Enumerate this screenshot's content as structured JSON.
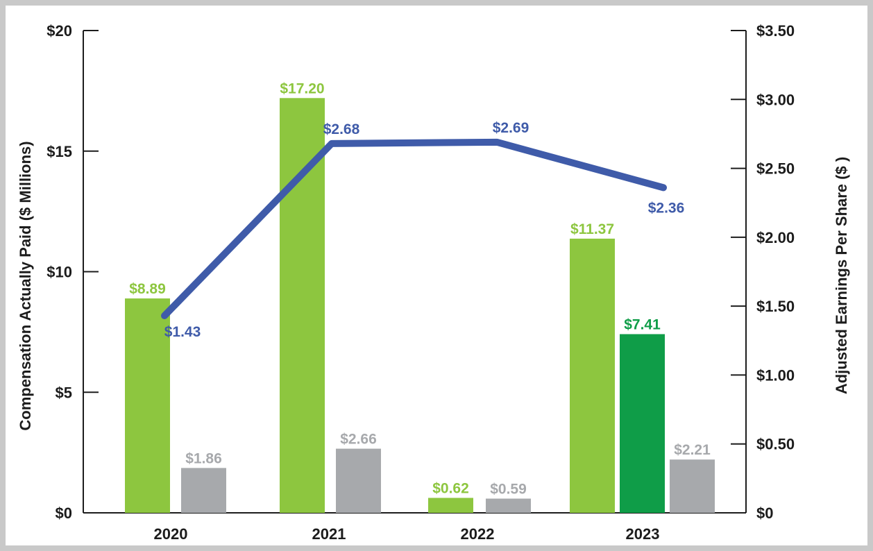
{
  "chart_data": {
    "type": "bar",
    "categories": [
      "2020",
      "2021",
      "2022",
      "2023"
    ],
    "ylabel": "Compensation Actually Paid ($ Millions)",
    "y2label": "Adjusted Earnings Per Share ($ )",
    "ylim": [
      0,
      20
    ],
    "y2lim": [
      0,
      3.5
    ],
    "yticks": [
      {
        "value": 0,
        "label": "$0"
      },
      {
        "value": 5,
        "label": "$5"
      },
      {
        "value": 10,
        "label": "$10"
      },
      {
        "value": 15,
        "label": "$15"
      },
      {
        "value": 20,
        "label": "$20"
      }
    ],
    "y2ticks": [
      {
        "value": 0,
        "label": "$0"
      },
      {
        "value": 0.5,
        "label": "$0.50"
      },
      {
        "value": 1.0,
        "label": "$1.00"
      },
      {
        "value": 1.5,
        "label": "$1.50"
      },
      {
        "value": 2.0,
        "label": "$2.00"
      },
      {
        "value": 2.5,
        "label": "$2.50"
      },
      {
        "value": 3.0,
        "label": "$3.00"
      },
      {
        "value": 3.5,
        "label": "$3.50"
      }
    ],
    "bars": [
      {
        "category": "2020",
        "series": "light-green",
        "value": 8.89,
        "label": "$8.89"
      },
      {
        "category": "2020",
        "series": "gray",
        "value": 1.86,
        "label": "$1.86"
      },
      {
        "category": "2021",
        "series": "light-green",
        "value": 17.2,
        "label": "$17.20"
      },
      {
        "category": "2021",
        "series": "gray",
        "value": 2.66,
        "label": "$2.66"
      },
      {
        "category": "2022",
        "series": "light-green",
        "value": 0.62,
        "label": "$0.62"
      },
      {
        "category": "2022",
        "series": "gray",
        "value": 0.59,
        "label": "$0.59"
      },
      {
        "category": "2023",
        "series": "light-green",
        "value": 11.37,
        "label": "$11.37"
      },
      {
        "category": "2023",
        "series": "dark-green",
        "value": 7.41,
        "label": "$7.41"
      },
      {
        "category": "2023",
        "series": "gray",
        "value": 2.21,
        "label": "$2.21"
      }
    ],
    "line": {
      "axis": "right",
      "points": [
        {
          "category": "2020",
          "value": 1.43,
          "label": "$1.43"
        },
        {
          "category": "2021",
          "value": 2.68,
          "label": "$2.68"
        },
        {
          "category": "2022",
          "value": 2.69,
          "label": "$2.69"
        },
        {
          "category": "2023",
          "value": 2.36,
          "label": "$2.36"
        }
      ]
    },
    "colors": {
      "light-green": "#8dc63f",
      "dark-green": "#0f9d48",
      "gray": "#a7a9ac",
      "line": "#3f5ba9",
      "axis": "#1c1c1c"
    }
  }
}
